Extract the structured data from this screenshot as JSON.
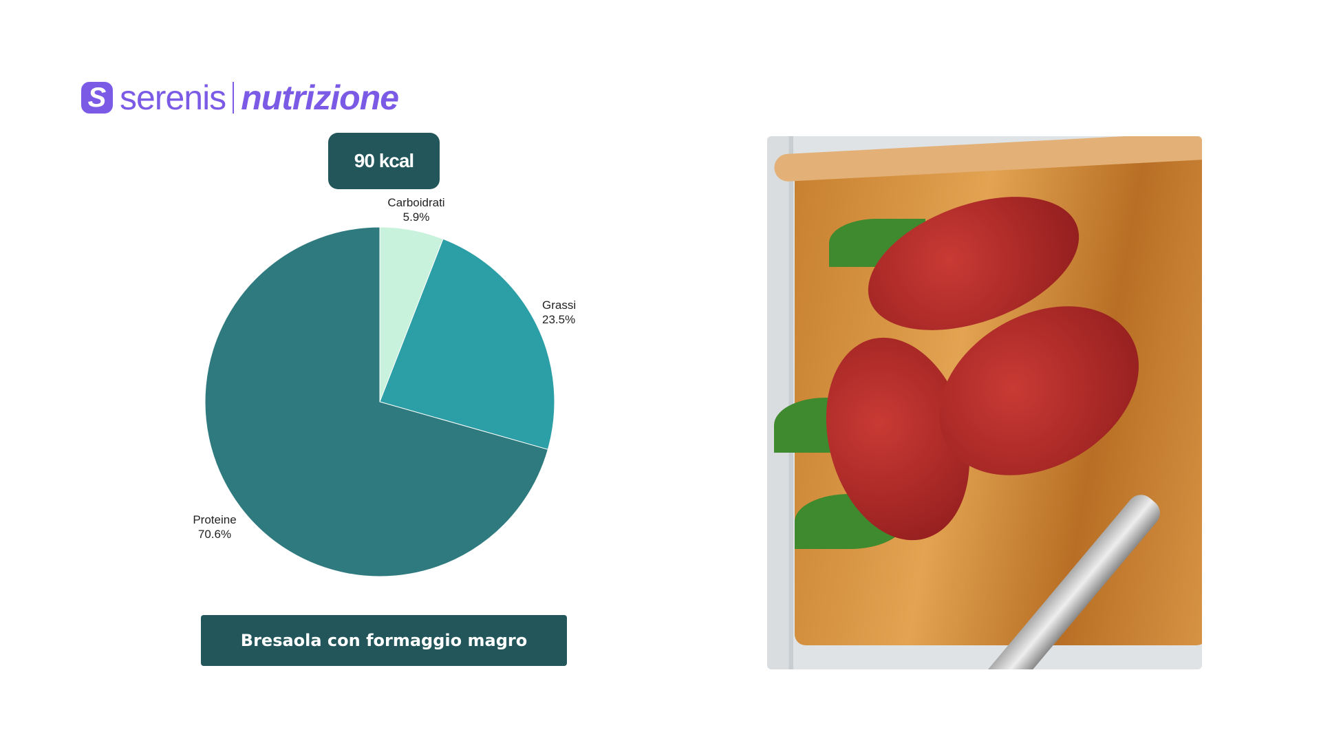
{
  "brand": {
    "name": "serenis",
    "product": "nutrizione",
    "color": "#7b5be6"
  },
  "energy": {
    "label": "90 kcal"
  },
  "dish": {
    "name": "Bresaola con formaggio magro"
  },
  "photo": {
    "subject": "bresaola-rolls-photo"
  },
  "chart_data": {
    "type": "pie",
    "slices": [
      {
        "name": "Carboidrati",
        "value": 5.9,
        "label": "5.9%",
        "color": "#c9f2dc"
      },
      {
        "name": "Grassi",
        "value": 23.5,
        "label": "23.5%",
        "color": "#2c9ea6"
      },
      {
        "name": "Proteine",
        "value": 70.6,
        "label": "70.6%",
        "color": "#2e7a7f"
      }
    ],
    "start_angle": "12 o'clock",
    "direction": "clockwise"
  }
}
